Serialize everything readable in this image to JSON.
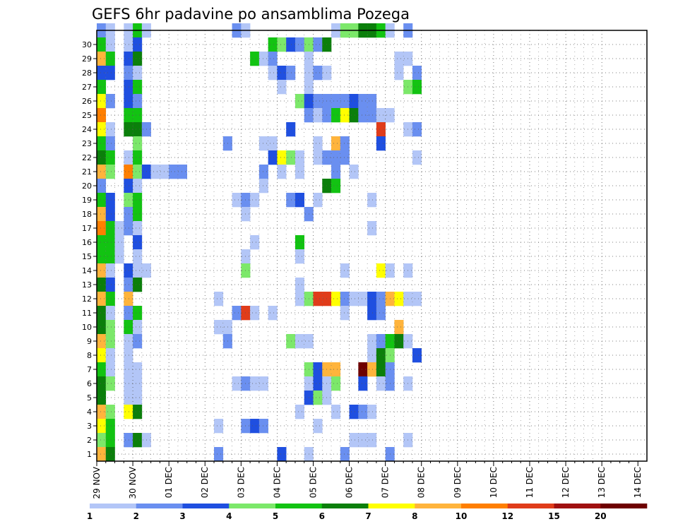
{
  "chart_data": {
    "type": "heatmap",
    "title": "GEFS 6hr padavine po ansamblima Pozega",
    "xlabel": "",
    "ylabel": "",
    "x_tick_labels": [
      "29 NOV",
      "30 NOV",
      "01 DEC",
      "02 DEC",
      "03 DEC",
      "04 DEC",
      "05 DEC",
      "06 DEC",
      "07 DEC",
      "08 DEC",
      "09 DEC",
      "10 DEC",
      "11 DEC",
      "12 DEC",
      "13 DEC",
      "14 DEC"
    ],
    "y_tick_labels": [
      "1",
      "2",
      "3",
      "4",
      "5",
      "6",
      "7",
      "8",
      "9",
      "10",
      "11",
      "12",
      "13",
      "14",
      "15",
      "16",
      "17",
      "18",
      "19",
      "20",
      "21",
      "22",
      "23",
      "24",
      "25",
      "26",
      "27",
      "28",
      "29",
      "30"
    ],
    "colorbar": {
      "labels": [
        "1",
        "2",
        "3",
        "4",
        "5",
        "6",
        "7",
        "8",
        "10",
        "12",
        "15",
        "20"
      ],
      "levels": [
        1,
        2,
        3,
        4,
        5,
        6,
        7,
        8,
        10,
        12,
        15,
        20
      ],
      "colors": [
        "#b3c6f7",
        "#6a8ff0",
        "#1f4fe0",
        "#7ce86a",
        "#12c312",
        "#0b7f0b",
        "#ffff00",
        "#ffb43c",
        "#ff7f00",
        "#e03c1a",
        "#a01010",
        "#6e0000"
      ]
    },
    "grid": true,
    "note_ranges": "values are 6-hourly precipitation classes (mm) per ensemble member; columns = 6-hour steps starting 29 NOV",
    "steps_per_day": 4,
    "num_steps": 61,
    "num_members": 30,
    "cells": [
      [
        30,
        0,
        2
      ],
      [
        30,
        1,
        1
      ],
      [
        30,
        3,
        1
      ],
      [
        30,
        4,
        5
      ],
      [
        30,
        5,
        1
      ],
      [
        30,
        15,
        2
      ],
      [
        30,
        16,
        1
      ],
      [
        30,
        26,
        1
      ],
      [
        30,
        27,
        4
      ],
      [
        30,
        28,
        4
      ],
      [
        30,
        29,
        6
      ],
      [
        30,
        30,
        6
      ],
      [
        30,
        31,
        5
      ],
      [
        30,
        32,
        1
      ],
      [
        30,
        34,
        2
      ],
      [
        29,
        0,
        5
      ],
      [
        29,
        1,
        1
      ],
      [
        29,
        3,
        1
      ],
      [
        29,
        4,
        3
      ],
      [
        29,
        19,
        5
      ],
      [
        29,
        20,
        4
      ],
      [
        29,
        21,
        3
      ],
      [
        29,
        22,
        2
      ],
      [
        29,
        23,
        4
      ],
      [
        29,
        24,
        2
      ],
      [
        29,
        25,
        6
      ],
      [
        28,
        0,
        8
      ],
      [
        28,
        1,
        5
      ],
      [
        28,
        3,
        3
      ],
      [
        28,
        4,
        6
      ],
      [
        28,
        17,
        5
      ],
      [
        28,
        18,
        1
      ],
      [
        28,
        19,
        2
      ],
      [
        28,
        23,
        1
      ],
      [
        28,
        33,
        1
      ],
      [
        28,
        34,
        1
      ],
      [
        27,
        0,
        3
      ],
      [
        27,
        1,
        3
      ],
      [
        27,
        3,
        2
      ],
      [
        27,
        4,
        1
      ],
      [
        27,
        19,
        1
      ],
      [
        27,
        20,
        3
      ],
      [
        27,
        21,
        2
      ],
      [
        27,
        23,
        1
      ],
      [
        27,
        24,
        2
      ],
      [
        27,
        25,
        1
      ],
      [
        27,
        33,
        1
      ],
      [
        27,
        35,
        2
      ],
      [
        26,
        0,
        5
      ],
      [
        26,
        3,
        3
      ],
      [
        26,
        4,
        5
      ],
      [
        26,
        20,
        1
      ],
      [
        26,
        23,
        1
      ],
      [
        26,
        34,
        4
      ],
      [
        26,
        35,
        5
      ],
      [
        25,
        0,
        7
      ],
      [
        25,
        1,
        2
      ],
      [
        25,
        3,
        3
      ],
      [
        25,
        4,
        2
      ],
      [
        25,
        22,
        4
      ],
      [
        25,
        23,
        3
      ],
      [
        25,
        24,
        2
      ],
      [
        25,
        25,
        2
      ],
      [
        25,
        26,
        2
      ],
      [
        25,
        27,
        2
      ],
      [
        25,
        28,
        3
      ],
      [
        25,
        29,
        2
      ],
      [
        25,
        30,
        2
      ],
      [
        24,
        0,
        9
      ],
      [
        24,
        3,
        5
      ],
      [
        24,
        4,
        5
      ],
      [
        24,
        23,
        2
      ],
      [
        24,
        24,
        1
      ],
      [
        24,
        25,
        2
      ],
      [
        24,
        26,
        5
      ],
      [
        24,
        27,
        7
      ],
      [
        24,
        28,
        6
      ],
      [
        24,
        29,
        2
      ],
      [
        24,
        30,
        2
      ],
      [
        24,
        31,
        1
      ],
      [
        24,
        32,
        1
      ],
      [
        23,
        0,
        7
      ],
      [
        23,
        1,
        1
      ],
      [
        23,
        3,
        6
      ],
      [
        23,
        4,
        6
      ],
      [
        23,
        5,
        2
      ],
      [
        23,
        21,
        3
      ],
      [
        23,
        31,
        10
      ],
      [
        23,
        34,
        1
      ],
      [
        23,
        35,
        2
      ],
      [
        22,
        0,
        5
      ],
      [
        22,
        1,
        2
      ],
      [
        22,
        4,
        4
      ],
      [
        22,
        14,
        2
      ],
      [
        22,
        18,
        1
      ],
      [
        22,
        19,
        1
      ],
      [
        22,
        24,
        1
      ],
      [
        22,
        26,
        8
      ],
      [
        22,
        27,
        2
      ],
      [
        22,
        31,
        3
      ],
      [
        21,
        0,
        6
      ],
      [
        21,
        1,
        5
      ],
      [
        21,
        3,
        1
      ],
      [
        21,
        4,
        5
      ],
      [
        21,
        19,
        3
      ],
      [
        21,
        20,
        7
      ],
      [
        21,
        21,
        4
      ],
      [
        21,
        22,
        1
      ],
      [
        21,
        24,
        1
      ],
      [
        21,
        25,
        2
      ],
      [
        21,
        26,
        2
      ],
      [
        21,
        27,
        2
      ],
      [
        21,
        35,
        1
      ],
      [
        20,
        0,
        8
      ],
      [
        20,
        1,
        4
      ],
      [
        20,
        3,
        9
      ],
      [
        20,
        4,
        4
      ],
      [
        20,
        5,
        3
      ],
      [
        20,
        6,
        1
      ],
      [
        20,
        7,
        1
      ],
      [
        20,
        8,
        2
      ],
      [
        20,
        9,
        2
      ],
      [
        20,
        18,
        2
      ],
      [
        20,
        20,
        1
      ],
      [
        20,
        22,
        1
      ],
      [
        20,
        26,
        2
      ],
      [
        20,
        28,
        1
      ],
      [
        19,
        0,
        2
      ],
      [
        19,
        3,
        3
      ],
      [
        19,
        4,
        1
      ],
      [
        19,
        18,
        1
      ],
      [
        19,
        25,
        6
      ],
      [
        19,
        26,
        5
      ],
      [
        18,
        0,
        5
      ],
      [
        18,
        1,
        3
      ],
      [
        18,
        3,
        4
      ],
      [
        18,
        4,
        5
      ],
      [
        18,
        15,
        1
      ],
      [
        18,
        16,
        2
      ],
      [
        18,
        17,
        1
      ],
      [
        18,
        21,
        2
      ],
      [
        18,
        22,
        3
      ],
      [
        18,
        24,
        1
      ],
      [
        18,
        30,
        1
      ],
      [
        17,
        0,
        8
      ],
      [
        17,
        1,
        3
      ],
      [
        17,
        3,
        2
      ],
      [
        17,
        4,
        5
      ],
      [
        17,
        16,
        1
      ],
      [
        17,
        23,
        2
      ],
      [
        16,
        0,
        9
      ],
      [
        16,
        1,
        5
      ],
      [
        16,
        2,
        1
      ],
      [
        16,
        3,
        2
      ],
      [
        16,
        4,
        1
      ],
      [
        16,
        30,
        1
      ],
      [
        15,
        0,
        5
      ],
      [
        15,
        1,
        5
      ],
      [
        15,
        2,
        1
      ],
      [
        15,
        4,
        3
      ],
      [
        15,
        17,
        1
      ],
      [
        15,
        22,
        5
      ],
      [
        14,
        0,
        5
      ],
      [
        14,
        1,
        5
      ],
      [
        14,
        2,
        1
      ],
      [
        14,
        4,
        1
      ],
      [
        14,
        16,
        1
      ],
      [
        14,
        22,
        1
      ],
      [
        13,
        0,
        8
      ],
      [
        13,
        1,
        1
      ],
      [
        13,
        3,
        3
      ],
      [
        13,
        4,
        1
      ],
      [
        13,
        5,
        1
      ],
      [
        13,
        16,
        4
      ],
      [
        13,
        27,
        1
      ],
      [
        13,
        31,
        7
      ],
      [
        13,
        32,
        1
      ],
      [
        13,
        34,
        1
      ],
      [
        12,
        0,
        6
      ],
      [
        12,
        1,
        3
      ],
      [
        12,
        3,
        2
      ],
      [
        12,
        4,
        6
      ],
      [
        12,
        22,
        1
      ],
      [
        11,
        0,
        8
      ],
      [
        11,
        1,
        5
      ],
      [
        11,
        3,
        8
      ],
      [
        11,
        13,
        1
      ],
      [
        11,
        22,
        1
      ],
      [
        11,
        23,
        4
      ],
      [
        11,
        24,
        10
      ],
      [
        11,
        25,
        10
      ],
      [
        11,
        26,
        7
      ],
      [
        11,
        27,
        2
      ],
      [
        11,
        28,
        1
      ],
      [
        11,
        29,
        1
      ],
      [
        11,
        30,
        3
      ],
      [
        11,
        31,
        2
      ],
      [
        11,
        32,
        8
      ],
      [
        11,
        33,
        7
      ],
      [
        11,
        34,
        1
      ],
      [
        11,
        35,
        1
      ],
      [
        10,
        0,
        6
      ],
      [
        10,
        1,
        1
      ],
      [
        10,
        3,
        2
      ],
      [
        10,
        4,
        5
      ],
      [
        10,
        15,
        2
      ],
      [
        10,
        16,
        10
      ],
      [
        10,
        17,
        1
      ],
      [
        10,
        19,
        1
      ],
      [
        10,
        27,
        1
      ],
      [
        10,
        30,
        3
      ],
      [
        10,
        31,
        2
      ],
      [
        9,
        0,
        6
      ],
      [
        9,
        1,
        4
      ],
      [
        9,
        3,
        5
      ],
      [
        9,
        4,
        1
      ],
      [
        9,
        13,
        1
      ],
      [
        9,
        14,
        1
      ],
      [
        9,
        33,
        8
      ],
      [
        8,
        0,
        8
      ],
      [
        8,
        1,
        4
      ],
      [
        8,
        3,
        1
      ],
      [
        8,
        4,
        2
      ],
      [
        8,
        14,
        2
      ],
      [
        8,
        21,
        4
      ],
      [
        8,
        22,
        1
      ],
      [
        8,
        23,
        1
      ],
      [
        8,
        30,
        1
      ],
      [
        8,
        31,
        2
      ],
      [
        8,
        32,
        5
      ],
      [
        8,
        33,
        6
      ],
      [
        8,
        34,
        1
      ],
      [
        7,
        0,
        7
      ],
      [
        7,
        1,
        1
      ],
      [
        7,
        3,
        1
      ],
      [
        7,
        30,
        1
      ],
      [
        7,
        31,
        6
      ],
      [
        7,
        32,
        4
      ],
      [
        7,
        35,
        3
      ],
      [
        6,
        0,
        5
      ],
      [
        6,
        1,
        1
      ],
      [
        6,
        3,
        1
      ],
      [
        6,
        4,
        1
      ],
      [
        6,
        23,
        4
      ],
      [
        6,
        24,
        3
      ],
      [
        6,
        25,
        8
      ],
      [
        6,
        26,
        8
      ],
      [
        6,
        29,
        12
      ],
      [
        6,
        30,
        8
      ],
      [
        6,
        31,
        6
      ],
      [
        6,
        32,
        2
      ],
      [
        5,
        0,
        6
      ],
      [
        5,
        1,
        4
      ],
      [
        5,
        3,
        1
      ],
      [
        5,
        4,
        1
      ],
      [
        5,
        15,
        1
      ],
      [
        5,
        16,
        2
      ],
      [
        5,
        17,
        1
      ],
      [
        5,
        18,
        1
      ],
      [
        5,
        23,
        1
      ],
      [
        5,
        24,
        3
      ],
      [
        5,
        25,
        1
      ],
      [
        5,
        26,
        4
      ],
      [
        5,
        29,
        3
      ],
      [
        5,
        31,
        1
      ],
      [
        5,
        32,
        2
      ],
      [
        5,
        34,
        1
      ],
      [
        4,
        0,
        6
      ],
      [
        4,
        3,
        1
      ],
      [
        4,
        4,
        1
      ],
      [
        4,
        23,
        3
      ],
      [
        4,
        24,
        4
      ],
      [
        4,
        25,
        1
      ],
      [
        3,
        0,
        8
      ],
      [
        3,
        1,
        4
      ],
      [
        3,
        3,
        7
      ],
      [
        3,
        4,
        6
      ],
      [
        3,
        22,
        1
      ],
      [
        3,
        26,
        1
      ],
      [
        3,
        28,
        3
      ],
      [
        3,
        29,
        2
      ],
      [
        3,
        30,
        1
      ],
      [
        2,
        0,
        7
      ],
      [
        2,
        1,
        5
      ],
      [
        2,
        13,
        1
      ],
      [
        2,
        16,
        2
      ],
      [
        2,
        17,
        3
      ],
      [
        2,
        18,
        2
      ],
      [
        2,
        24,
        1
      ],
      [
        1,
        0,
        4
      ],
      [
        1,
        1,
        5
      ],
      [
        1,
        3,
        2
      ],
      [
        1,
        4,
        6
      ],
      [
        1,
        5,
        1
      ],
      [
        1,
        28,
        1
      ],
      [
        1,
        29,
        1
      ],
      [
        1,
        30,
        1
      ],
      [
        1,
        34,
        1
      ],
      [
        0,
        0,
        8
      ],
      [
        0,
        1,
        6
      ],
      [
        0,
        13,
        2
      ],
      [
        0,
        20,
        3
      ],
      [
        0,
        23,
        1
      ],
      [
        0,
        27,
        2
      ],
      [
        0,
        32,
        2
      ]
    ]
  }
}
